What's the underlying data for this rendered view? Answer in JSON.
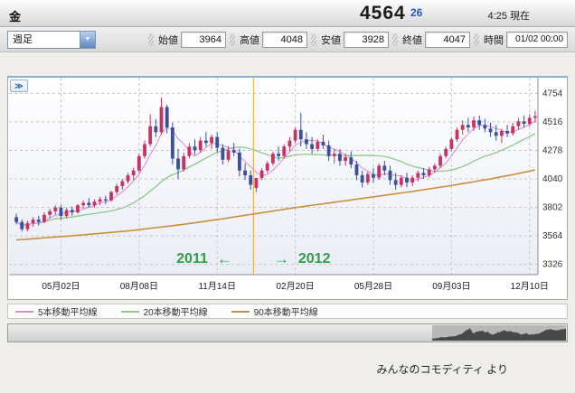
{
  "header": {
    "instrument": "金",
    "price": "4564",
    "change": "26",
    "time_label": "4:25 現在"
  },
  "toolbar": {
    "timeframe_value": "週足",
    "fields": [
      {
        "label": "始値",
        "value": "3964"
      },
      {
        "label": "高値",
        "value": "4048"
      },
      {
        "label": "安値",
        "value": "3928"
      },
      {
        "label": "終値",
        "value": "4047"
      },
      {
        "label": "時間",
        "value": "01/02 00:00"
      }
    ]
  },
  "icons": {
    "expand": "≫",
    "dropdown_caret": "▼"
  },
  "credit": "みんなのコモディティ より",
  "chart_data": {
    "type": "candlestick",
    "timeframe": "weekly",
    "ylim": [
      3240,
      4840
    ],
    "y_ticks": [
      4754,
      4516,
      4278,
      4040,
      3802,
      3564,
      3326
    ],
    "x_ticks": [
      {
        "index": 8,
        "label": "05月02日"
      },
      {
        "index": 22,
        "label": "08月08日"
      },
      {
        "index": 36,
        "label": "11月14日"
      },
      {
        "index": 50,
        "label": "02月20日"
      },
      {
        "index": 64,
        "label": "05月28日"
      },
      {
        "index": 78,
        "label": "09月03日"
      },
      {
        "index": 92,
        "label": "12月10日"
      }
    ],
    "divider_index": 42.5,
    "annotation": {
      "left_year": "2011",
      "left_arrow": "←",
      "right_arrow": "→",
      "right_year": "2012",
      "color": "#2f9e44"
    },
    "colors": {
      "up": "#c43566",
      "down": "#3a4fa0",
      "ma5": "#dd8ad2",
      "ma20": "#8cc98c",
      "ma90": "#cb8e3e",
      "grid": "#c6c6c6",
      "divider": "#e8a33d",
      "axis": "#8f8f8f",
      "minimap_fill": "#484848"
    },
    "legend": [
      {
        "label": "5本移動平均線",
        "color": "#dd8ad2"
      },
      {
        "label": "20本移動平均線",
        "color": "#8cc98c"
      },
      {
        "label": "90本移動平均線",
        "color": "#cb8e3e"
      }
    ],
    "ma_periods": {
      "ma5": 5,
      "ma20": 20,
      "ma90": 90
    },
    "ma90_anchors": [
      [
        0,
        3530
      ],
      [
        10,
        3565
      ],
      [
        20,
        3605
      ],
      [
        30,
        3660
      ],
      [
        36,
        3700
      ],
      [
        43,
        3750
      ],
      [
        50,
        3800
      ],
      [
        57,
        3845
      ],
      [
        64,
        3890
      ],
      [
        71,
        3935
      ],
      [
        78,
        3985
      ],
      [
        85,
        4040
      ],
      [
        90,
        4085
      ],
      [
        93,
        4115
      ]
    ],
    "candles": [
      [
        3720,
        3750,
        3660,
        3680
      ],
      [
        3680,
        3700,
        3600,
        3620
      ],
      [
        3620,
        3690,
        3600,
        3670
      ],
      [
        3670,
        3720,
        3640,
        3700
      ],
      [
        3700,
        3730,
        3650,
        3680
      ],
      [
        3680,
        3760,
        3670,
        3740
      ],
      [
        3740,
        3790,
        3710,
        3770
      ],
      [
        3770,
        3820,
        3740,
        3800
      ],
      [
        3800,
        3820,
        3700,
        3730
      ],
      [
        3730,
        3800,
        3710,
        3780
      ],
      [
        3780,
        3810,
        3730,
        3760
      ],
      [
        3760,
        3830,
        3750,
        3820
      ],
      [
        3820,
        3860,
        3790,
        3840
      ],
      [
        3840,
        3880,
        3800,
        3820
      ],
      [
        3820,
        3870,
        3800,
        3850
      ],
      [
        3850,
        3890,
        3820,
        3870
      ],
      [
        3870,
        3900,
        3830,
        3860
      ],
      [
        3860,
        3940,
        3850,
        3930
      ],
      [
        3930,
        4000,
        3910,
        3980
      ],
      [
        3980,
        4040,
        3950,
        4020
      ],
      [
        4020,
        4090,
        4000,
        4070
      ],
      [
        4070,
        4130,
        4030,
        4110
      ],
      [
        4110,
        4250,
        4090,
        4230
      ],
      [
        4230,
        4360,
        4210,
        4330
      ],
      [
        4330,
        4580,
        4310,
        4480
      ],
      [
        4480,
        4540,
        4390,
        4430
      ],
      [
        4430,
        4720,
        4410,
        4640
      ],
      [
        4640,
        4660,
        4420,
        4470
      ],
      [
        4470,
        4510,
        4160,
        4210
      ],
      [
        4210,
        4290,
        4040,
        4120
      ],
      [
        4120,
        4260,
        4100,
        4230
      ],
      [
        4230,
        4340,
        4210,
        4310
      ],
      [
        4310,
        4370,
        4240,
        4280
      ],
      [
        4280,
        4390,
        4260,
        4360
      ],
      [
        4360,
        4430,
        4310,
        4340
      ],
      [
        4340,
        4410,
        4290,
        4390
      ],
      [
        4390,
        4430,
        4260,
        4300
      ],
      [
        4300,
        4330,
        4160,
        4200
      ],
      [
        4200,
        4310,
        4180,
        4280
      ],
      [
        4280,
        4340,
        4230,
        4260
      ],
      [
        4260,
        4290,
        4060,
        4110
      ],
      [
        4110,
        4170,
        4030,
        4070
      ],
      [
        4070,
        4110,
        3950,
        3990
      ],
      [
        3964,
        4048,
        3928,
        4047
      ],
      [
        4047,
        4130,
        4030,
        4110
      ],
      [
        4110,
        4190,
        4090,
        4170
      ],
      [
        4170,
        4270,
        4150,
        4250
      ],
      [
        4250,
        4310,
        4190,
        4230
      ],
      [
        4230,
        4330,
        4210,
        4310
      ],
      [
        4310,
        4390,
        4270,
        4360
      ],
      [
        4360,
        4470,
        4340,
        4450
      ],
      [
        4450,
        4590,
        4310,
        4370
      ],
      [
        4370,
        4430,
        4290,
        4330
      ],
      [
        4330,
        4390,
        4250,
        4290
      ],
      [
        4290,
        4370,
        4270,
        4350
      ],
      [
        4350,
        4410,
        4290,
        4320
      ],
      [
        4320,
        4360,
        4190,
        4230
      ],
      [
        4230,
        4290,
        4170,
        4250
      ],
      [
        4250,
        4290,
        4150,
        4190
      ],
      [
        4190,
        4250,
        4150,
        4220
      ],
      [
        4220,
        4270,
        4130,
        4160
      ],
      [
        4160,
        4190,
        4030,
        4070
      ],
      [
        4070,
        4110,
        3970,
        4010
      ],
      [
        4010,
        4100,
        3990,
        4080
      ],
      [
        4080,
        4130,
        4010,
        4050
      ],
      [
        4050,
        4170,
        4030,
        4150
      ],
      [
        4150,
        4190,
        4070,
        4110
      ],
      [
        4110,
        4150,
        3990,
        4030
      ],
      [
        4030,
        4090,
        3950,
        3990
      ],
      [
        3990,
        4070,
        3970,
        4050
      ],
      [
        4050,
        4090,
        3970,
        4010
      ],
      [
        4010,
        4070,
        3980,
        4050
      ],
      [
        4050,
        4110,
        4020,
        4090
      ],
      [
        4090,
        4130,
        4040,
        4070
      ],
      [
        4070,
        4140,
        4050,
        4120
      ],
      [
        4120,
        4170,
        4090,
        4150
      ],
      [
        4150,
        4250,
        4130,
        4230
      ],
      [
        4230,
        4310,
        4210,
        4290
      ],
      [
        4290,
        4390,
        4270,
        4370
      ],
      [
        4370,
        4470,
        4350,
        4450
      ],
      [
        4450,
        4530,
        4410,
        4490
      ],
      [
        4490,
        4550,
        4430,
        4470
      ],
      [
        4470,
        4560,
        4440,
        4530
      ],
      [
        4530,
        4570,
        4450,
        4490
      ],
      [
        4490,
        4540,
        4430,
        4460
      ],
      [
        4460,
        4510,
        4390,
        4430
      ],
      [
        4430,
        4490,
        4360,
        4400
      ],
      [
        4400,
        4460,
        4340,
        4440
      ],
      [
        4440,
        4490,
        4390,
        4420
      ],
      [
        4420,
        4510,
        4400,
        4480
      ],
      [
        4480,
        4550,
        4450,
        4520
      ],
      [
        4520,
        4570,
        4470,
        4500
      ],
      [
        4500,
        4580,
        4480,
        4550
      ],
      [
        4550,
        4610,
        4510,
        4564
      ]
    ]
  }
}
